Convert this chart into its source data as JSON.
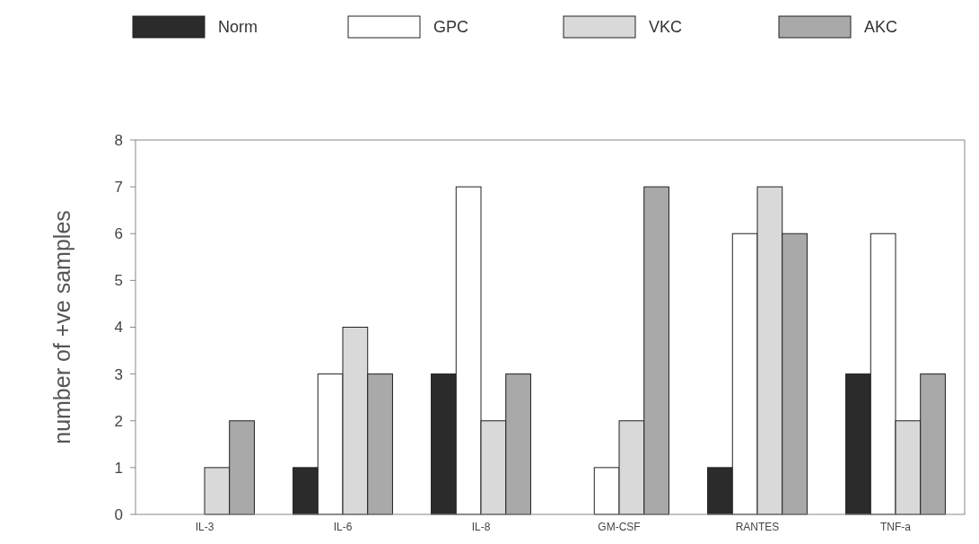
{
  "chart_data": {
    "type": "bar",
    "ylabel": "number of +ve samples",
    "categories": [
      "IL-3",
      "IL-6",
      "IL-8",
      "GM-CSF",
      "RANTES",
      "TNF-a"
    ],
    "series": [
      {
        "name": "Norm",
        "color": "#2b2b2b",
        "values": [
          0,
          1,
          3,
          0,
          1,
          3
        ]
      },
      {
        "name": "GPC",
        "color": "#ffffff",
        "values": [
          0,
          3,
          7,
          1,
          6,
          6
        ]
      },
      {
        "name": "VKC",
        "color": "#d9d9d9",
        "values": [
          1,
          4,
          2,
          2,
          7,
          2
        ]
      },
      {
        "name": "AKC",
        "color": "#a9a9a9",
        "values": [
          2,
          3,
          3,
          7,
          6,
          3
        ]
      }
    ],
    "ylim": [
      0,
      8
    ],
    "yticks": [
      0,
      1,
      2,
      3,
      4,
      5,
      6,
      7,
      8
    ],
    "legend": "top"
  }
}
